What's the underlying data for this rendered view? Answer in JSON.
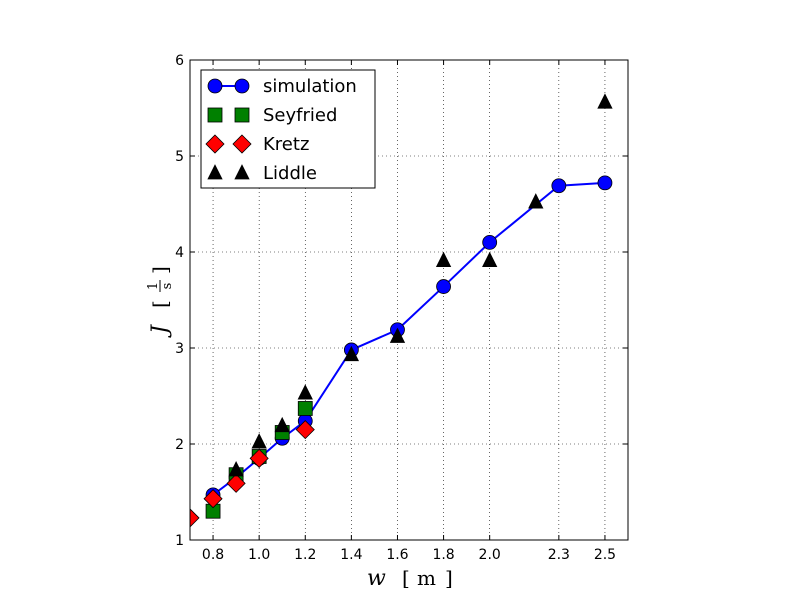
{
  "chart_data": {
    "type": "scatter",
    "xlim": [
      0.7,
      2.6
    ],
    "ylim": [
      1,
      6
    ],
    "x_ticks": [
      0.8,
      1.0,
      1.2,
      1.4,
      1.6,
      1.8,
      2.0,
      2.3,
      2.5
    ],
    "x_tick_labels": [
      "0.8",
      "1.0",
      "1.2",
      "1.4",
      "1.6",
      "1.8",
      "2.0",
      "2.3",
      "2.5"
    ],
    "y_ticks": [
      1,
      2,
      3,
      4,
      5,
      6
    ],
    "y_tick_labels": [
      "1",
      "2",
      "3",
      "4",
      "5",
      "6"
    ],
    "xlabel": {
      "symbol": "w",
      "unit": "m"
    },
    "ylabel": {
      "symbol": "J",
      "unit_num": "1",
      "unit_den": "s"
    },
    "grid": true,
    "legend": "top-left",
    "series": [
      {
        "name": "simulation",
        "marker": "circle",
        "line": true,
        "color": "#0000ff",
        "x": [
          0.8,
          0.9,
          1.0,
          1.1,
          1.2,
          1.4,
          1.6,
          1.8,
          2.0,
          2.3,
          2.5
        ],
        "y": [
          1.47,
          1.65,
          1.85,
          2.06,
          2.24,
          2.98,
          3.19,
          3.64,
          4.1,
          4.69,
          4.72
        ]
      },
      {
        "name": "Seyfried",
        "marker": "square",
        "line": false,
        "color": "#008000",
        "x": [
          0.8,
          0.9,
          1.0,
          1.1,
          1.2
        ],
        "y": [
          1.3,
          1.68,
          1.87,
          2.12,
          2.37
        ]
      },
      {
        "name": "Kretz",
        "marker": "diamond",
        "line": false,
        "color": "#ff0000",
        "x": [
          0.7,
          0.8,
          0.9,
          1.0,
          1.2
        ],
        "y": [
          1.23,
          1.43,
          1.59,
          1.85,
          2.15
        ]
      },
      {
        "name": "Liddle",
        "marker": "triangle",
        "line": false,
        "color": "#000000",
        "x": [
          0.9,
          1.0,
          1.1,
          1.2,
          1.4,
          1.6,
          1.8,
          2.0,
          2.2,
          2.5
        ],
        "y": [
          1.73,
          2.02,
          2.19,
          2.53,
          2.93,
          3.12,
          3.91,
          3.91,
          4.52,
          5.56
        ]
      }
    ]
  }
}
